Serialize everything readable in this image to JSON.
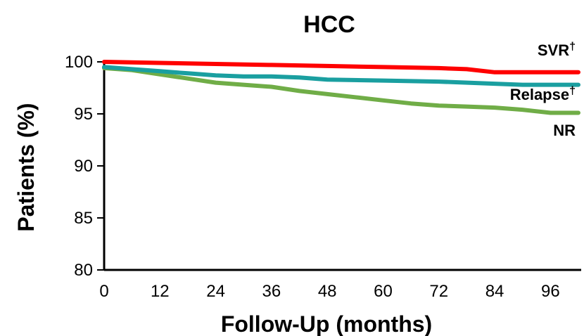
{
  "chart_data": {
    "type": "line",
    "title": "HCC",
    "xlabel": "Follow-Up (months)",
    "ylabel": "Patients (%)",
    "xlim": [
      0,
      102
    ],
    "ylim": [
      80,
      100
    ],
    "x_ticks": [
      "0",
      "12",
      "24",
      "36",
      "48",
      "60",
      "72",
      "84",
      "96"
    ],
    "y_ticks": [
      "100",
      "95",
      "90",
      "85",
      "80"
    ],
    "grid": false,
    "series": [
      {
        "name": "SVR",
        "label_text": "SVR",
        "label_mark": "†",
        "color": "#ff0000",
        "x": [
          0,
          12,
          24,
          36,
          48,
          60,
          72,
          78,
          84,
          90,
          96,
          102
        ],
        "y": [
          100,
          99.9,
          99.8,
          99.7,
          99.6,
          99.5,
          99.4,
          99.3,
          99.0,
          99.0,
          99.0,
          99.0
        ]
      },
      {
        "name": "Relapse",
        "label_text": "Relapse",
        "label_mark": "†",
        "color": "#1a9fa0",
        "x": [
          0,
          6,
          12,
          18,
          24,
          30,
          36,
          42,
          48,
          60,
          72,
          84,
          90,
          96,
          102
        ],
        "y": [
          99.5,
          99.3,
          99.1,
          98.9,
          98.7,
          98.6,
          98.6,
          98.5,
          98.3,
          98.2,
          98.1,
          97.9,
          97.8,
          97.8,
          97.8
        ]
      },
      {
        "name": "NR",
        "label_text": "NR",
        "label_mark": "",
        "color": "#70ad47",
        "x": [
          0,
          6,
          12,
          18,
          24,
          30,
          36,
          42,
          48,
          54,
          60,
          66,
          72,
          78,
          84,
          90,
          96,
          102
        ],
        "y": [
          99.4,
          99.2,
          98.8,
          98.4,
          98.0,
          97.8,
          97.6,
          97.2,
          96.9,
          96.6,
          96.3,
          96.0,
          95.8,
          95.7,
          95.6,
          95.4,
          95.1,
          95.1
        ]
      }
    ]
  }
}
